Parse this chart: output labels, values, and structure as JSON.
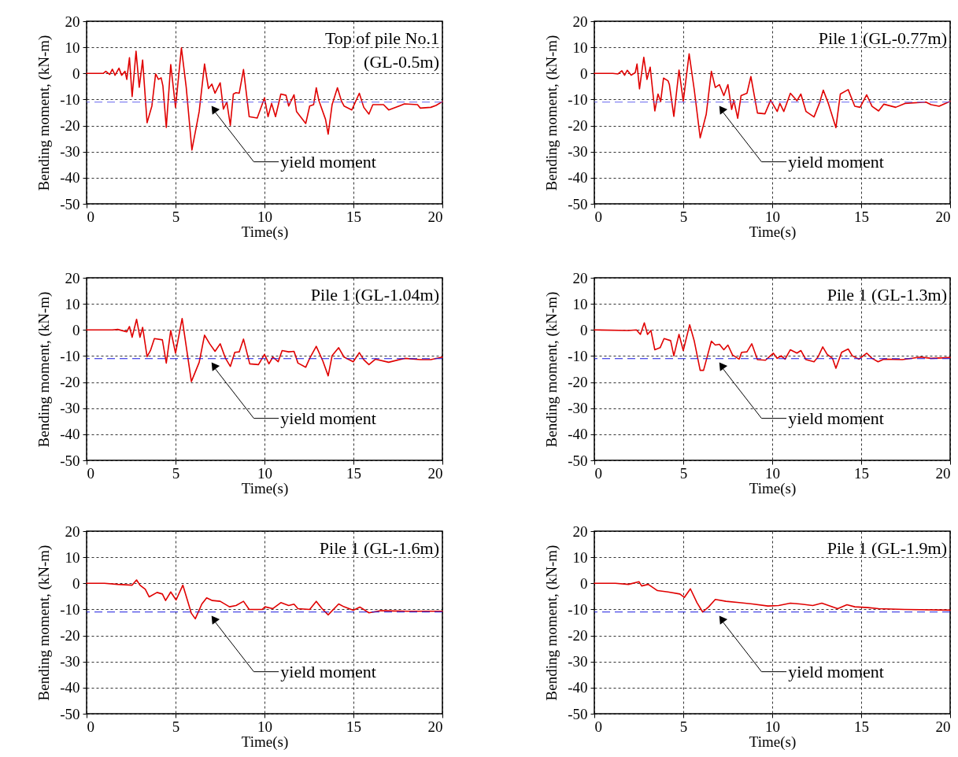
{
  "chart_data": [
    {
      "type": "line",
      "title": "Top of pile No.1\n(GL-0.5m)",
      "xlabel": "Time(s)",
      "ylabel": "Bending moment,  (kN-m)",
      "xlim": [
        0,
        20
      ],
      "ylim": [
        -50,
        20
      ],
      "xticks": [
        0,
        5,
        10,
        15,
        20
      ],
      "yticks": [
        -50,
        -40,
        -30,
        -20,
        -10,
        0,
        10,
        20
      ],
      "grid": true,
      "x": [
        0,
        0.93,
        1.08,
        1.3,
        1.45,
        1.6,
        1.82,
        1.97,
        2.16,
        2.26,
        2.41,
        2.56,
        2.78,
        2.96,
        3.15,
        3.4,
        3.67,
        3.88,
        4.04,
        4.19,
        4.29,
        4.48,
        4.73,
        5.0,
        5.33,
        5.6,
        5.92,
        6.33,
        6.63,
        6.85,
        7.04,
        7.22,
        7.51,
        7.69,
        7.88,
        8.08,
        8.25,
        8.4,
        8.58,
        8.82,
        9.14,
        9.59,
        10.0,
        10.2,
        10.4,
        10.62,
        10.92,
        11.21,
        11.36,
        11.66,
        11.8,
        12.32,
        12.54,
        12.76,
        12.91,
        13.06,
        13.43,
        13.58,
        13.8,
        14.1,
        14.32,
        14.47,
        14.91,
        15.33,
        15.58,
        15.87,
        16.09,
        16.69,
        16.98,
        17.87,
        18.6,
        18.76,
        19.35,
        19.64,
        20
      ],
      "series": [
        {
          "color": "#e00000",
          "values": [
            0,
            0,
            0.8,
            -0.4,
            1.6,
            -0.7,
            2,
            -0.7,
            0.8,
            -2.3,
            6,
            -8.9,
            8.5,
            -5.3,
            5.1,
            -18.9,
            -12.5,
            -0.2,
            -2.3,
            -1.7,
            -4.8,
            -20.7,
            3.4,
            -13,
            9.8,
            -5.3,
            -29.4,
            -14.6,
            3.6,
            -5.8,
            -4.1,
            -7.6,
            -3.6,
            -13.7,
            -11,
            -19.9,
            -7.9,
            -7.4,
            -7.6,
            1.5,
            -16.6,
            -17.1,
            -9.4,
            -16.6,
            -11.5,
            -16.6,
            -7.9,
            -8.4,
            -12.5,
            -8.2,
            -14.6,
            -19.2,
            -12.5,
            -12,
            -5.5,
            -10.5,
            -17.6,
            -23.3,
            -12,
            -5.5,
            -10.5,
            -12.5,
            -14,
            -7.6,
            -13,
            -15.6,
            -12,
            -12,
            -14,
            -11.7,
            -12,
            -13.3,
            -13,
            -12.3,
            -10.8
          ]
        }
      ],
      "ref_lines": [
        {
          "axis": "y",
          "value": -11,
          "label": "yield moment",
          "color": "#6666ee",
          "line_style": "dashed"
        }
      ]
    },
    {
      "type": "line",
      "title": "Pile 1 (GL-0.77m)",
      "xlabel": "Time(s)",
      "ylabel": "Bending moment,  (kN-m)",
      "xlim": [
        0,
        20
      ],
      "ylim": [
        -50,
        20
      ],
      "xticks": [
        0,
        5,
        10,
        15,
        20
      ],
      "yticks": [
        -50,
        -40,
        -30,
        -20,
        -10,
        0,
        10,
        20
      ],
      "grid": true,
      "x": [
        0,
        1.04,
        1.33,
        1.55,
        1.7,
        1.85,
        2.07,
        2.3,
        2.4,
        2.54,
        2.78,
        2.96,
        3.14,
        3.4,
        3.58,
        3.73,
        3.89,
        4.14,
        4.22,
        4.47,
        4.76,
        5.0,
        5.33,
        5.62,
        5.95,
        6.29,
        6.58,
        6.8,
        7.03,
        7.28,
        7.51,
        7.72,
        7.84,
        8.06,
        8.25,
        8.58,
        8.8,
        9.17,
        9.59,
        9.91,
        10.28,
        10.43,
        10.65,
        11.02,
        11.39,
        11.61,
        11.9,
        12.35,
        12.65,
        12.87,
        13.17,
        13.58,
        13.83,
        14.27,
        14.64,
        14.94,
        15.31,
        15.61,
        15.98,
        16.27,
        16.94,
        17.46,
        18.64,
        18.93,
        19.38,
        20
      ],
      "series": [
        {
          "color": "#e00000",
          "values": [
            0,
            0,
            -0.2,
            1,
            -0.7,
            1.2,
            -0.7,
            0.3,
            3.6,
            -5.9,
            6.2,
            -2.3,
            2.4,
            -14.4,
            -7.9,
            -10.8,
            -1.8,
            -2.8,
            -4.3,
            -16.5,
            1.3,
            -10.7,
            7.5,
            -6.4,
            -24.7,
            -15.7,
            0.8,
            -5.4,
            -4.3,
            -8.5,
            -4.3,
            -13.8,
            -10.3,
            -17.2,
            -8.5,
            -7.6,
            -1.2,
            -15.2,
            -15.5,
            -10.3,
            -14.6,
            -11.5,
            -14.6,
            -7.6,
            -10.5,
            -7.9,
            -14.6,
            -16.7,
            -11.5,
            -6.4,
            -11.8,
            -20.8,
            -7.9,
            -6.2,
            -12.6,
            -13,
            -8.2,
            -12.6,
            -14.4,
            -11.8,
            -13,
            -11.5,
            -11,
            -12,
            -12.6,
            -10.7
          ]
        }
      ],
      "ref_lines": [
        {
          "axis": "y",
          "value": -11,
          "label": "yield moment",
          "color": "#6666ee",
          "line_style": "dashed"
        }
      ]
    },
    {
      "type": "line",
      "title": "Pile 1 (GL-1.04m)",
      "xlabel": "Time(s)",
      "ylabel": "Bending moment,  (kN-m)",
      "xlim": [
        0,
        20
      ],
      "ylim": [
        -50,
        20
      ],
      "xticks": [
        0,
        5,
        10,
        15,
        20
      ],
      "yticks": [
        -50,
        -40,
        -30,
        -20,
        -10,
        0,
        10,
        20
      ],
      "grid": true,
      "x": [
        0,
        1.45,
        1.75,
        2.26,
        2.41,
        2.56,
        2.81,
        3.0,
        3.15,
        3.4,
        3.59,
        3.81,
        4.26,
        4.48,
        4.73,
        5.0,
        5.37,
        5.89,
        6.33,
        6.63,
        6.92,
        7.22,
        7.51,
        7.81,
        8.08,
        8.33,
        8.58,
        8.82,
        9.17,
        9.66,
        10.0,
        10.25,
        10.47,
        10.77,
        10.99,
        11.36,
        11.66,
        11.88,
        12.32,
        12.54,
        12.91,
        13.28,
        13.58,
        13.8,
        14.17,
        14.47,
        14.99,
        15.33,
        15.58,
        15.87,
        16.24,
        16.98,
        17.87,
        18.76,
        19.35,
        20
      ],
      "series": [
        {
          "color": "#e00000",
          "values": [
            0,
            0,
            0.2,
            -0.7,
            1.3,
            -2.8,
            4.1,
            -2.8,
            1,
            -10.2,
            -7.9,
            -3.3,
            -3.8,
            -12.7,
            -0.2,
            -8.9,
            4.4,
            -19.8,
            -12.4,
            -2,
            -5.3,
            -8.2,
            -5.3,
            -10.9,
            -14,
            -8.6,
            -8.4,
            -3.5,
            -13,
            -13.3,
            -9.4,
            -13,
            -10.4,
            -12.2,
            -7.9,
            -8.4,
            -8.2,
            -12.7,
            -14.3,
            -10.9,
            -6.3,
            -11.9,
            -17.6,
            -9.9,
            -6.8,
            -10.4,
            -12.2,
            -8.7,
            -11.4,
            -13.3,
            -11.2,
            -12.4,
            -10.9,
            -11.4,
            -11.4,
            -10.4
          ]
        }
      ],
      "ref_lines": [
        {
          "axis": "y",
          "value": -11,
          "label": "yield moment",
          "color": "#1a1adf",
          "line_style": "dashed"
        }
      ]
    },
    {
      "type": "line",
      "title": "Pile 1 (GL-1.3m)",
      "xlabel": "Time(s)",
      "ylabel": "Bending moment,  (kN-m)",
      "xlim": [
        0,
        20
      ],
      "ylim": [
        -50,
        20
      ],
      "xticks": [
        0,
        5,
        10,
        15,
        20
      ],
      "yticks": [
        -50,
        -40,
        -30,
        -20,
        -10,
        0,
        10,
        20
      ],
      "grid": true,
      "x": [
        0,
        1.92,
        2.37,
        2.59,
        2.81,
        2.99,
        3.18,
        3.4,
        3.7,
        3.92,
        4.29,
        4.47,
        4.76,
        5.0,
        5.36,
        5.62,
        5.95,
        6.14,
        6.58,
        6.8,
        7.03,
        7.28,
        7.51,
        7.77,
        8.14,
        8.28,
        8.58,
        8.85,
        9.17,
        9.62,
        10.06,
        10.28,
        10.5,
        10.72,
        11.02,
        11.39,
        11.61,
        11.9,
        12.35,
        12.57,
        12.84,
        13.09,
        13.39,
        13.58,
        13.9,
        14.27,
        14.5,
        14.87,
        15.31,
        15.61,
        15.95,
        16.27,
        17.31,
        18.34,
        18.93,
        20
      ],
      "series": [
        {
          "color": "#e00000",
          "values": [
            0,
            -0.2,
            0,
            -1.7,
            2.7,
            -1.7,
            -0.2,
            -7.6,
            -6.8,
            -3.3,
            -4.1,
            -9.9,
            -1.7,
            -7.9,
            2,
            -4.3,
            -15.5,
            -15.5,
            -4.3,
            -5.8,
            -5.5,
            -7.6,
            -5.8,
            -9.6,
            -11.2,
            -8.6,
            -8.4,
            -5.3,
            -11.4,
            -11.6,
            -8.9,
            -10.9,
            -9.9,
            -11.2,
            -7.6,
            -8.9,
            -7.9,
            -11.4,
            -12.2,
            -10.4,
            -6.5,
            -9.4,
            -10.9,
            -14.7,
            -8.6,
            -7.3,
            -9.9,
            -11.2,
            -8.9,
            -10.9,
            -12.2,
            -11.2,
            -11.4,
            -10.4,
            -10.9,
            -10.6
          ]
        }
      ],
      "ref_lines": [
        {
          "axis": "y",
          "value": -11,
          "label": "yield moment",
          "color": "#1a1adf",
          "line_style": "dashed"
        }
      ]
    },
    {
      "type": "line",
      "title": "Pile 1 (GL-1.6m)",
      "xlabel": "Time(s)",
      "ylabel": "Bending moment,  (kN-m)",
      "xlim": [
        0,
        20
      ],
      "ylim": [
        -50,
        20
      ],
      "xticks": [
        0,
        5,
        10,
        15,
        20
      ],
      "yticks": [
        -50,
        -40,
        -30,
        -20,
        -10,
        0,
        10,
        20
      ],
      "grid": true,
      "x": [
        0,
        1.0,
        1.75,
        2.56,
        2.81,
        3.0,
        3.3,
        3.52,
        3.96,
        4.26,
        4.44,
        4.73,
        5.03,
        5.41,
        5.89,
        6.11,
        6.48,
        6.75,
        7.07,
        7.51,
        8.03,
        8.4,
        8.82,
        9.14,
        9.88,
        10.03,
        10.47,
        10.92,
        11.36,
        11.66,
        11.88,
        12.54,
        12.91,
        13.21,
        13.58,
        14.17,
        14.47,
        14.99,
        15.36,
        15.87,
        16.54,
        18.02,
        20
      ],
      "series": [
        {
          "color": "#e00000",
          "values": [
            0,
            0,
            -0.4,
            -0.7,
            1.3,
            -0.7,
            -2.3,
            -5.2,
            -3.5,
            -4.1,
            -6.6,
            -3.3,
            -6.4,
            -0.7,
            -11.5,
            -13.6,
            -7.9,
            -5.6,
            -6.6,
            -6.9,
            -9,
            -8.5,
            -6.9,
            -10,
            -10,
            -9,
            -9.7,
            -7.4,
            -8.5,
            -8,
            -9.7,
            -10,
            -6.9,
            -9.5,
            -12.1,
            -7.9,
            -9,
            -10.3,
            -9.1,
            -11.3,
            -10.5,
            -10.7,
            -10.7
          ]
        }
      ],
      "ref_lines": [
        {
          "axis": "y",
          "value": -11,
          "label": "yield moment",
          "color": "#1a1adf",
          "line_style": "dashed"
        }
      ]
    },
    {
      "type": "line",
      "title": "Pile 1 (GL-1.9m)",
      "xlabel": "Time(s)",
      "ylabel": "Bending moment,  (kN-m)",
      "xlim": [
        0,
        20
      ],
      "ylim": [
        -50,
        20
      ],
      "xticks": [
        0,
        5,
        10,
        15,
        20
      ],
      "yticks": [
        -50,
        -40,
        -30,
        -20,
        -10,
        0,
        10,
        20
      ],
      "grid": true,
      "x": [
        0,
        1.18,
        1.92,
        2.51,
        2.66,
        3.03,
        3.55,
        4.14,
        4.81,
        5.06,
        5.4,
        5.77,
        6.09,
        6.43,
        6.8,
        7.4,
        8.14,
        8.88,
        9.76,
        10.36,
        11.02,
        11.54,
        12.28,
        12.79,
        13.17,
        13.68,
        14.2,
        14.64,
        15.38,
        15.98,
        17.46,
        20
      ],
      "series": [
        {
          "color": "#e00000",
          "values": [
            0,
            0,
            -0.4,
            0.6,
            -1,
            -0.4,
            -2.8,
            -3.3,
            -4.1,
            -5.4,
            -2.1,
            -7.4,
            -11,
            -9,
            -6.2,
            -6.9,
            -7.4,
            -7.9,
            -8.7,
            -8.5,
            -7.6,
            -7.9,
            -8.5,
            -7.6,
            -8.5,
            -9.7,
            -8.2,
            -9,
            -9.3,
            -9.7,
            -10,
            -10.3
          ]
        }
      ],
      "ref_lines": [
        {
          "axis": "y",
          "value": -11,
          "label": "yield moment",
          "color": "#1a1adf",
          "line_style": "dashed"
        }
      ]
    }
  ]
}
